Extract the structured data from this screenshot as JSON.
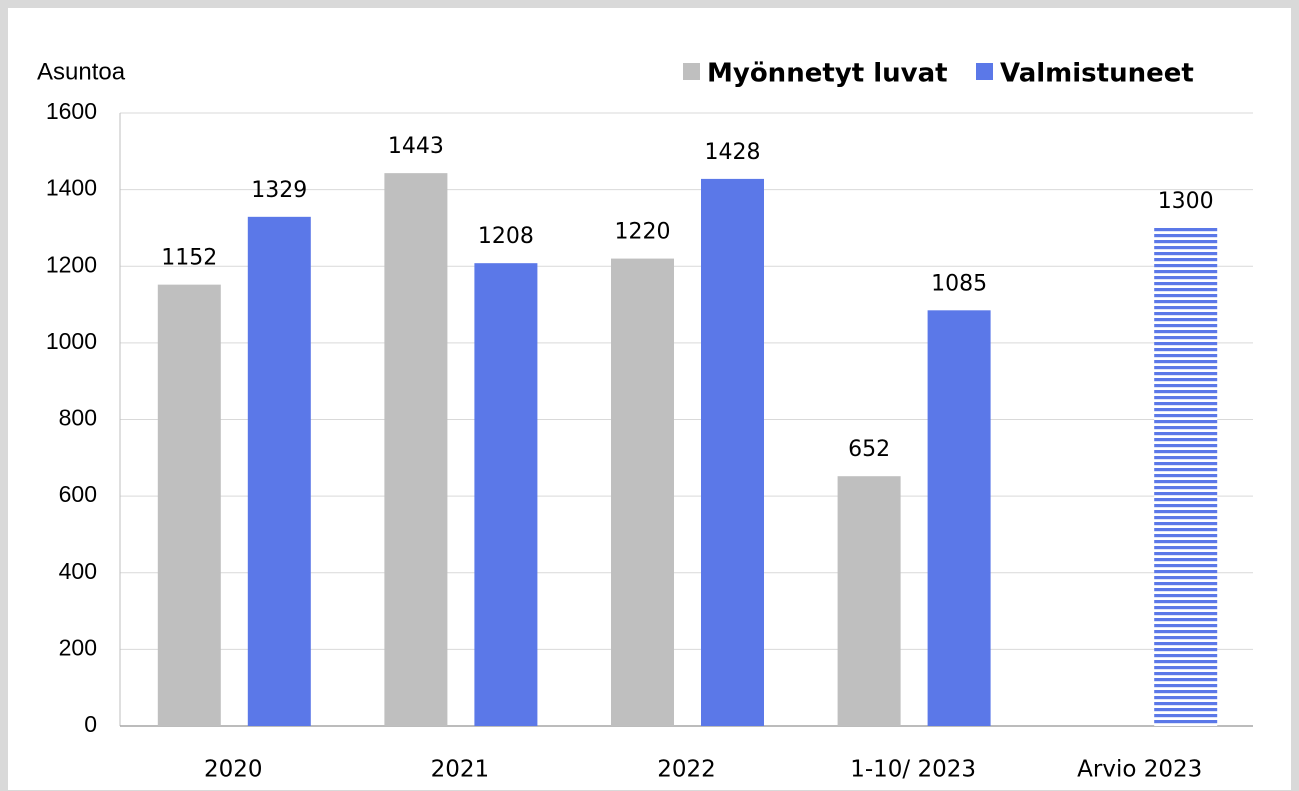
{
  "chart_data": {
    "type": "bar",
    "y_label": "Asuntoa",
    "categories": [
      "2020",
      "2021",
      "2022",
      "1-10/ 2023",
      "Arvio 2023"
    ],
    "series": [
      {
        "name": "Myönnetyt luvat",
        "color": "#bfbfbf",
        "values": [
          1152,
          1443,
          1220,
          652,
          null
        ]
      },
      {
        "name": "Valmistuneet",
        "color": "#5b78e8",
        "values": [
          1329,
          1208,
          1428,
          1085,
          1300
        ],
        "hatched": [
          false,
          false,
          false,
          false,
          true
        ]
      }
    ],
    "ylim": [
      0,
      1600
    ],
    "yticks": [
      0,
      200,
      400,
      600,
      800,
      1000,
      1200,
      1400,
      1600
    ],
    "grid": true,
    "legend": "top-right"
  }
}
